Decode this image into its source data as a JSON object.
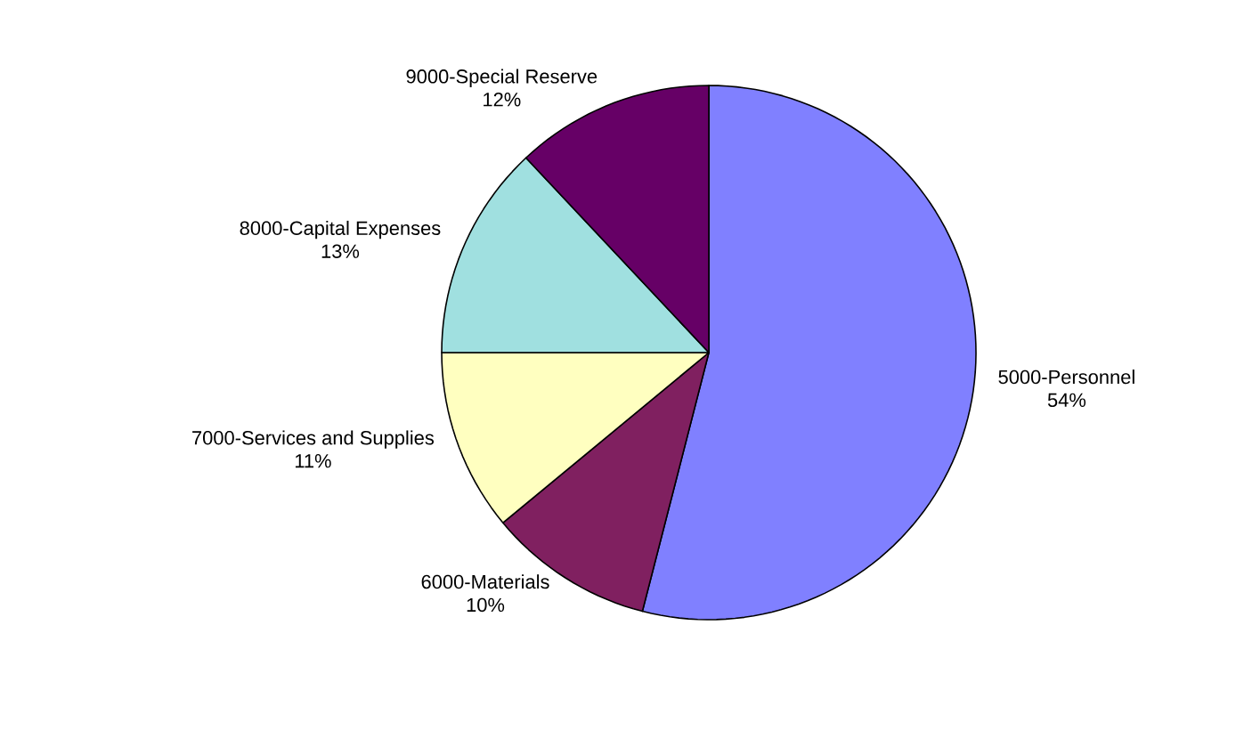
{
  "chart_data": {
    "type": "pie",
    "categories": [
      "5000-Personnel",
      "6000-Materials",
      "7000-Services and Supplies",
      "8000-Capital Expenses",
      "9000-Special Reserve"
    ],
    "values": [
      54,
      10,
      11,
      13,
      12
    ],
    "value_labels": [
      "54%",
      "10%",
      "11%",
      "13%",
      "12%"
    ],
    "colors": [
      "#8080ff",
      "#802060",
      "#ffffc0",
      "#a0e0e0",
      "#660066"
    ]
  }
}
